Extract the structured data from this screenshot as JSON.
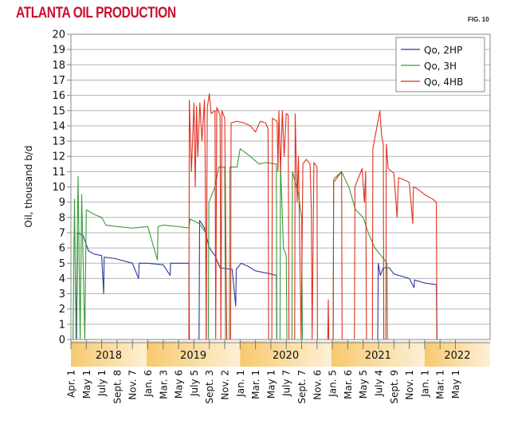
{
  "chart_data": {
    "type": "line",
    "title": "ATLANTA OIL PRODUCTION",
    "figure_label": "FIG. 10",
    "ylabel": "Oil, thousand b/d",
    "xlabel": "",
    "ylim": [
      0,
      20
    ],
    "yticks": [
      0,
      1,
      2,
      3,
      4,
      5,
      6,
      7,
      8,
      9,
      10,
      11,
      12,
      13,
      14,
      15,
      16,
      17,
      18,
      19,
      20
    ],
    "grid": true,
    "legend_position": "top-right",
    "year_bands": [
      "2018",
      "2019",
      "2020",
      "2021",
      "2022"
    ],
    "x_ticks": [
      {
        "label": "Apr. 1",
        "date": "2018-04-01"
      },
      {
        "label": "May 1",
        "date": "2018-05-01"
      },
      {
        "label": "July 1",
        "date": "2018-07-01"
      },
      {
        "label": "Sept. 8",
        "date": "2018-09-08"
      },
      {
        "label": "Nov. 7",
        "date": "2018-11-07"
      },
      {
        "label": "Jan. 6",
        "date": "2019-01-06"
      },
      {
        "label": "Mar. 3",
        "date": "2019-03-03"
      },
      {
        "label": "May 6",
        "date": "2019-05-06"
      },
      {
        "label": "July 5",
        "date": "2019-07-05"
      },
      {
        "label": "Sept. 3",
        "date": "2019-09-03"
      },
      {
        "label": "Nov. 2",
        "date": "2019-11-02"
      },
      {
        "label": "Jan. 1",
        "date": "2020-01-01"
      },
      {
        "label": "Mar. 1",
        "date": "2020-03-01"
      },
      {
        "label": "May 1",
        "date": "2020-05-01"
      },
      {
        "label": "July 7",
        "date": "2020-07-07"
      },
      {
        "label": "Sept. 7",
        "date": "2020-09-07"
      },
      {
        "label": "Nov. 6",
        "date": "2020-11-06"
      },
      {
        "label": "Jan. 5",
        "date": "2021-01-05"
      },
      {
        "label": "Mar. 6",
        "date": "2021-03-06"
      },
      {
        "label": "May 5",
        "date": "2021-05-05"
      },
      {
        "label": "July 4",
        "date": "2021-07-04"
      },
      {
        "label": "Sept. 9",
        "date": "2021-09-09"
      },
      {
        "label": "Nov. 1",
        "date": "2021-11-01"
      },
      {
        "label": "Jan. 1",
        "date": "2022-01-01"
      },
      {
        "label": "Mar. 1",
        "date": "2022-03-01"
      },
      {
        "label": "May 1",
        "date": "2022-05-01"
      }
    ],
    "series": [
      {
        "name": "Qo, 2HP",
        "color": "#2b3a9c",
        "points": [
          [
            "2018-04-12",
            0
          ],
          [
            "2018-04-14",
            7.0
          ],
          [
            "2018-04-25",
            6.8
          ],
          [
            "2018-05-10",
            5.8
          ],
          [
            "2018-06-01",
            5.6
          ],
          [
            "2018-07-01",
            5.5
          ],
          [
            "2018-07-10",
            3.0
          ],
          [
            "2018-07-12",
            5.4
          ],
          [
            "2018-09-01",
            5.3
          ],
          [
            "2018-11-07",
            5.0
          ],
          [
            "2018-12-01",
            4.0
          ],
          [
            "2018-12-03",
            5.0
          ],
          [
            "2019-01-06",
            5.0
          ],
          [
            "2019-03-03",
            4.9
          ],
          [
            "2019-04-01",
            4.2
          ],
          [
            "2019-04-03",
            5.0
          ],
          [
            "2019-05-06",
            5.0
          ],
          [
            "2019-06-15",
            5.0
          ],
          [
            "2019-06-17",
            0
          ],
          [
            "2019-07-25",
            0
          ],
          [
            "2019-07-27",
            7.8
          ],
          [
            "2019-08-15",
            7.3
          ],
          [
            "2019-09-03",
            6.0
          ],
          [
            "2019-09-25",
            5.5
          ],
          [
            "2019-10-15",
            4.7
          ],
          [
            "2019-12-01",
            4.6
          ],
          [
            "2019-12-15",
            2.2
          ],
          [
            "2019-12-17",
            4.6
          ],
          [
            "2020-01-05",
            5.0
          ],
          [
            "2020-02-01",
            4.8
          ],
          [
            "2020-03-01",
            4.5
          ],
          [
            "2020-05-01",
            4.3
          ],
          [
            "2020-05-25",
            4.2
          ],
          [
            "2020-05-27",
            0
          ],
          [
            "2021-07-01",
            0
          ],
          [
            "2021-07-03",
            5.0
          ],
          [
            "2021-07-12",
            4.2
          ],
          [
            "2021-07-25",
            4.7
          ],
          [
            "2021-08-20",
            4.7
          ],
          [
            "2021-09-09",
            4.3
          ],
          [
            "2021-11-01",
            4.0
          ],
          [
            "2021-11-20",
            3.4
          ],
          [
            "2021-11-22",
            3.9
          ],
          [
            "2022-01-01",
            3.7
          ],
          [
            "2022-02-15",
            3.6
          ],
          [
            "2022-02-17",
            0
          ],
          [
            "2022-08-30",
            0
          ]
        ]
      },
      {
        "name": "Qo, 3H",
        "color": "#3a9a3a",
        "points": [
          [
            "2018-04-05",
            0
          ],
          [
            "2018-04-08",
            9.2
          ],
          [
            "2018-04-11",
            0
          ],
          [
            "2018-04-15",
            10.7
          ],
          [
            "2018-04-19",
            0
          ],
          [
            "2018-04-22",
            9.5
          ],
          [
            "2018-04-28",
            0
          ],
          [
            "2018-05-01",
            8.5
          ],
          [
            "2018-06-01",
            8.2
          ],
          [
            "2018-07-01",
            8.0
          ],
          [
            "2018-07-20",
            7.5
          ],
          [
            "2018-09-08",
            7.4
          ],
          [
            "2018-11-07",
            7.3
          ],
          [
            "2019-01-06",
            7.4
          ],
          [
            "2019-02-10",
            5.2
          ],
          [
            "2019-02-12",
            7.4
          ],
          [
            "2019-03-03",
            7.5
          ],
          [
            "2019-05-06",
            7.4
          ],
          [
            "2019-06-15",
            7.3
          ],
          [
            "2019-06-20",
            7.9
          ],
          [
            "2019-07-25",
            7.6
          ],
          [
            "2019-08-20",
            7.0
          ],
          [
            "2019-08-22",
            0
          ],
          [
            "2019-08-30",
            0
          ],
          [
            "2019-09-01",
            9.0
          ],
          [
            "2019-09-25",
            10.0
          ],
          [
            "2019-10-10",
            11.3
          ],
          [
            "2019-11-02",
            11.3
          ],
          [
            "2019-11-05",
            0
          ],
          [
            "2019-11-20",
            0
          ],
          [
            "2019-11-22",
            11.3
          ],
          [
            "2019-12-20",
            11.3
          ],
          [
            "2020-01-01",
            12.5
          ],
          [
            "2020-02-10",
            12.0
          ],
          [
            "2020-03-15",
            11.5
          ],
          [
            "2020-04-10",
            11.6
          ],
          [
            "2020-05-25",
            11.5
          ],
          [
            "2020-05-27",
            0
          ],
          [
            "2020-06-10",
            0
          ],
          [
            "2020-06-12",
            11.5
          ],
          [
            "2020-06-25",
            6.0
          ],
          [
            "2020-07-07",
            5.5
          ],
          [
            "2020-07-10",
            0
          ],
          [
            "2020-07-30",
            0
          ],
          [
            "2020-08-01",
            11.0
          ],
          [
            "2020-08-25",
            9.5
          ],
          [
            "2020-09-07",
            8.0
          ],
          [
            "2020-09-10",
            0
          ],
          [
            "2021-01-08",
            0
          ],
          [
            "2021-01-10",
            10.5
          ],
          [
            "2021-02-10",
            11.0
          ],
          [
            "2021-03-10",
            10.0
          ],
          [
            "2021-04-05",
            8.5
          ],
          [
            "2021-05-05",
            8.0
          ],
          [
            "2021-05-25",
            7.0
          ],
          [
            "2021-06-20",
            6.0
          ],
          [
            "2021-07-15",
            5.5
          ],
          [
            "2021-08-10",
            5.0
          ],
          [
            "2021-08-12",
            0
          ],
          [
            "2022-08-30",
            0
          ]
        ]
      },
      {
        "name": "Qo, 4HB",
        "color": "#e0301e",
        "points": [
          [
            "2018-04-01",
            0
          ],
          [
            "2019-06-15",
            0
          ],
          [
            "2019-06-17",
            15.7
          ],
          [
            "2019-06-25",
            11
          ],
          [
            "2019-07-05",
            15.5
          ],
          [
            "2019-07-10",
            10
          ],
          [
            "2019-07-15",
            15.3
          ],
          [
            "2019-07-20",
            12
          ],
          [
            "2019-07-28",
            15.5
          ],
          [
            "2019-08-05",
            13
          ],
          [
            "2019-08-15",
            15.7
          ],
          [
            "2019-08-18",
            11
          ],
          [
            "2019-08-22",
            0
          ],
          [
            "2019-08-26",
            15.2
          ],
          [
            "2019-09-03",
            16.1
          ],
          [
            "2019-09-10",
            14.8
          ],
          [
            "2019-09-25",
            15.0
          ],
          [
            "2019-09-28",
            0
          ],
          [
            "2019-10-02",
            15.2
          ],
          [
            "2019-10-15",
            14.7
          ],
          [
            "2019-10-18",
            0
          ],
          [
            "2019-10-22",
            15.0
          ],
          [
            "2019-11-02",
            14.5
          ],
          [
            "2019-11-10",
            0
          ],
          [
            "2019-11-25",
            0
          ],
          [
            "2019-11-27",
            14.2
          ],
          [
            "2019-12-20",
            14.3
          ],
          [
            "2020-01-15",
            14.2
          ],
          [
            "2020-02-10",
            14.0
          ],
          [
            "2020-03-01",
            13.6
          ],
          [
            "2020-03-20",
            14.3
          ],
          [
            "2020-04-10",
            14.2
          ],
          [
            "2020-04-20",
            13.8
          ],
          [
            "2020-04-22",
            0
          ],
          [
            "2020-05-05",
            0
          ],
          [
            "2020-05-08",
            14.5
          ],
          [
            "2020-05-28",
            14.3
          ],
          [
            "2020-06-01",
            11
          ],
          [
            "2020-06-05",
            15.0
          ],
          [
            "2020-06-12",
            11
          ],
          [
            "2020-06-20",
            15.0
          ],
          [
            "2020-06-28",
            12
          ],
          [
            "2020-07-07",
            14.8
          ],
          [
            "2020-07-15",
            14.7
          ],
          [
            "2020-07-18",
            0
          ],
          [
            "2020-08-10",
            0
          ],
          [
            "2020-08-12",
            14.8
          ],
          [
            "2020-08-20",
            9
          ],
          [
            "2020-08-25",
            12
          ],
          [
            "2020-09-05",
            0
          ],
          [
            "2020-09-12",
            11.5
          ],
          [
            "2020-09-25",
            11.8
          ],
          [
            "2020-10-10",
            11.5
          ],
          [
            "2020-10-15",
            8.5
          ],
          [
            "2020-10-18",
            0
          ],
          [
            "2020-10-25",
            11.6
          ],
          [
            "2020-11-06",
            11.3
          ],
          [
            "2020-11-08",
            0
          ],
          [
            "2020-12-18",
            0
          ],
          [
            "2020-12-20",
            2.6
          ],
          [
            "2020-12-22",
            0
          ],
          [
            "2021-01-08",
            0
          ],
          [
            "2021-01-10",
            10.3
          ],
          [
            "2021-02-10",
            11.0
          ],
          [
            "2021-02-12",
            0
          ],
          [
            "2021-04-01",
            0
          ],
          [
            "2021-04-03",
            10.0
          ],
          [
            "2021-05-01",
            11.2
          ],
          [
            "2021-05-10",
            9.0
          ],
          [
            "2021-05-15",
            11.0
          ],
          [
            "2021-05-18",
            0
          ],
          [
            "2021-06-10",
            0
          ],
          [
            "2021-06-12",
            12.5
          ],
          [
            "2021-07-10",
            15.0
          ],
          [
            "2021-07-18",
            13.3
          ],
          [
            "2021-07-25",
            12.8
          ],
          [
            "2021-07-27",
            0
          ],
          [
            "2021-08-05",
            0
          ],
          [
            "2021-08-07",
            12.8
          ],
          [
            "2021-08-15",
            11.2
          ],
          [
            "2021-09-09",
            10.9
          ],
          [
            "2021-09-20",
            8
          ],
          [
            "2021-09-25",
            10.6
          ],
          [
            "2021-10-10",
            10.5
          ],
          [
            "2021-11-01",
            10.3
          ],
          [
            "2021-11-15",
            7.6
          ],
          [
            "2021-11-17",
            10.0
          ],
          [
            "2021-12-01",
            9.9
          ],
          [
            "2022-01-01",
            9.5
          ],
          [
            "2022-02-01",
            9.2
          ],
          [
            "2022-02-15",
            9.0
          ],
          [
            "2022-02-17",
            0
          ],
          [
            "2022-08-30",
            0
          ]
        ]
      }
    ]
  }
}
